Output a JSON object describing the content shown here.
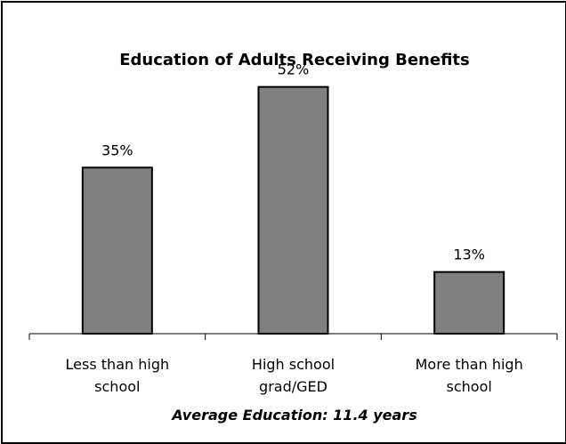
{
  "chart_data": {
    "type": "bar",
    "title": "Education of Adults Receiving Benefits",
    "categories": [
      [
        "Less than high",
        "school"
      ],
      [
        "High school",
        "grad/GED"
      ],
      [
        "More than high",
        "school"
      ]
    ],
    "values": [
      35,
      52,
      13
    ],
    "data_labels": [
      "35%",
      "52%",
      "13%"
    ],
    "ylim": [
      0,
      60
    ],
    "grid": false,
    "legend": "none",
    "bar_color": "#808080",
    "bar_edge_color": "#000000",
    "footnote": "Average Education:  11.4 years"
  }
}
